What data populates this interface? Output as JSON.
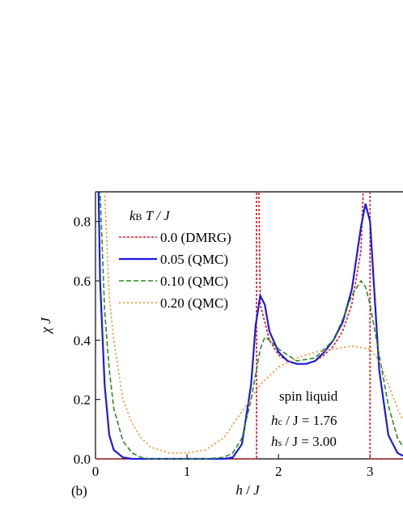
{
  "chart_data": {
    "type": "line",
    "x_label_parts": [
      "h",
      " / ",
      "J"
    ],
    "y_label_parts": [
      "χ",
      " J"
    ],
    "panel_label": "(b)",
    "legend_title_parts": [
      "k",
      "B",
      " T / J"
    ],
    "annotations": {
      "phase": "spin liquid",
      "hc": [
        "h",
        "c",
        " / J = 1.76"
      ],
      "hs": [
        "h",
        "s",
        " / J = 3.00"
      ]
    },
    "xlim": [
      0,
      3.36
    ],
    "ylim": [
      0,
      0.9
    ],
    "xticks": [
      0,
      1,
      2,
      3
    ],
    "yticks": [
      {
        "value": 0,
        "label": "0.0"
      },
      0.2,
      0.4,
      0.6,
      0.8
    ],
    "series": [
      {
        "name": "0.0 (DMRG)",
        "color": "#e8141e",
        "dash": "3,2",
        "x": [
          0,
          1.76,
          1.76,
          1.8,
          1.9,
          2.0,
          2.1,
          2.2,
          2.3,
          2.4,
          2.5,
          2.6,
          2.7,
          2.8,
          2.9,
          3.0,
          3.0,
          3.36
        ],
        "values": [
          0,
          0,
          1.5,
          0.52,
          0.4,
          0.35,
          0.33,
          0.32,
          0.32,
          0.33,
          0.35,
          0.38,
          0.43,
          0.52,
          0.7,
          1.5,
          0,
          0
        ]
      },
      {
        "name": "0.05 (QMC)",
        "color": "#1a1adf",
        "dash": "",
        "x": [
          0,
          0.05,
          0.1,
          0.15,
          0.2,
          0.3,
          0.4,
          1.4,
          1.5,
          1.6,
          1.7,
          1.75,
          1.8,
          1.85,
          1.9,
          2.0,
          2.1,
          2.2,
          2.3,
          2.4,
          2.5,
          2.6,
          2.7,
          2.8,
          2.9,
          2.95,
          3.0,
          3.05,
          3.1,
          3.2,
          3.3,
          3.36
        ],
        "values": [
          1.5,
          0.6,
          0.25,
          0.08,
          0.03,
          0.005,
          0,
          0,
          0.005,
          0.05,
          0.25,
          0.45,
          0.55,
          0.52,
          0.43,
          0.36,
          0.33,
          0.32,
          0.32,
          0.33,
          0.36,
          0.4,
          0.46,
          0.57,
          0.78,
          0.86,
          0.8,
          0.55,
          0.3,
          0.08,
          0.02,
          0.01
        ]
      },
      {
        "name": "0.10 (QMC)",
        "color": "#2a8a1e",
        "dash": "6,3",
        "x": [
          0,
          0.05,
          0.1,
          0.15,
          0.2,
          0.3,
          0.4,
          0.5,
          0.6,
          1.2,
          1.4,
          1.5,
          1.6,
          1.7,
          1.8,
          1.85,
          1.9,
          2.0,
          2.2,
          2.4,
          2.6,
          2.7,
          2.8,
          2.9,
          2.95,
          3.0,
          3.1,
          3.2,
          3.3,
          3.36
        ],
        "values": [
          1.5,
          0.9,
          0.5,
          0.3,
          0.17,
          0.06,
          0.02,
          0.005,
          0,
          0,
          0.005,
          0.02,
          0.07,
          0.2,
          0.37,
          0.41,
          0.4,
          0.37,
          0.33,
          0.34,
          0.4,
          0.47,
          0.55,
          0.6,
          0.58,
          0.52,
          0.35,
          0.18,
          0.07,
          0.04
        ]
      },
      {
        "name": "0.20 (QMC)",
        "color": "#f28c1c",
        "dash": "2,3",
        "x": [
          0,
          0.1,
          0.15,
          0.2,
          0.3,
          0.4,
          0.5,
          0.6,
          0.8,
          1.0,
          1.2,
          1.4,
          1.6,
          1.8,
          2.0,
          2.2,
          2.4,
          2.6,
          2.8,
          3.0,
          3.1,
          3.2,
          3.3,
          3.36
        ],
        "values": [
          1.5,
          0.9,
          0.55,
          0.4,
          0.2,
          0.12,
          0.07,
          0.04,
          0.02,
          0.02,
          0.03,
          0.07,
          0.16,
          0.25,
          0.31,
          0.34,
          0.36,
          0.37,
          0.38,
          0.37,
          0.33,
          0.25,
          0.17,
          0.13
        ]
      }
    ]
  }
}
